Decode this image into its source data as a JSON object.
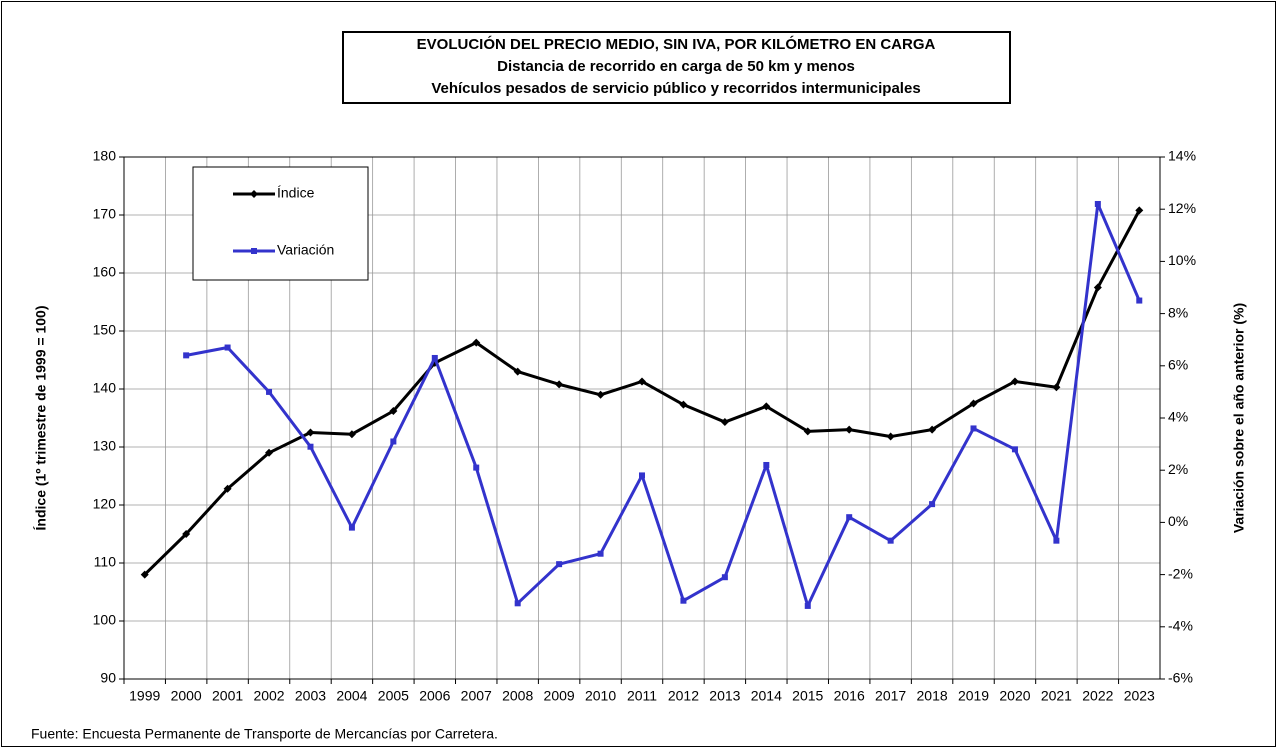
{
  "chart_data": {
    "type": "line",
    "title": [
      "EVOLUCIÓN  DEL PRECIO MEDIO, SIN IVA, POR KILÓMETRO  EN CARGA",
      "Distancia de recorrido en carga de 50 km y menos",
      "Vehículos pesados de servicio público  y recorridos intermunicipales"
    ],
    "y_label": "Índice (1º trimestre de 1999 = 100)",
    "y2_label": "Variación sobre el año anterior (%)",
    "source": "Fuente: Encuesta Permanente de Transporte de Mercancías por Carretera.",
    "categories": [
      "1999",
      "2000",
      "2001",
      "2002",
      "2003",
      "2004",
      "2005",
      "2006",
      "2007",
      "2008",
      "2009",
      "2010",
      "2011",
      "2012",
      "2013",
      "2014",
      "2015",
      "2016",
      "2017",
      "2018",
      "2019",
      "2020",
      "2021",
      "2022",
      "2023"
    ],
    "series": [
      {
        "name": "Índice",
        "color": "#000000",
        "marker": "diamond",
        "values": [
          108,
          115,
          122.8,
          129,
          132.5,
          132.2,
          136.2,
          144.5,
          148,
          143,
          140.8,
          139,
          141.3,
          137.3,
          134.3,
          137,
          132.7,
          133,
          131.8,
          133,
          137.5,
          141.3,
          140.3,
          157.5,
          170.8
        ]
      },
      {
        "name": "Variación",
        "color": "#3333cc",
        "marker": "square",
        "axis": "y2",
        "values": [
          null,
          6.4,
          6.7,
          5.0,
          2.9,
          -0.2,
          3.1,
          6.3,
          2.1,
          -3.1,
          -1.6,
          -1.2,
          1.8,
          -3.0,
          -2.1,
          2.2,
          -3.2,
          0.2,
          -0.7,
          0.7,
          3.6,
          2.8,
          -0.7,
          12.2,
          8.5
        ]
      }
    ],
    "ylim": [
      90,
      180
    ],
    "yticks": [
      90,
      100,
      110,
      120,
      130,
      140,
      150,
      160,
      170,
      180
    ],
    "y2lim": [
      -6,
      14
    ],
    "y2ticks": [
      {
        "value": -6,
        "label": "-6%"
      },
      {
        "value": -4,
        "label": "-4%"
      },
      {
        "value": -2,
        "label": "-2%"
      },
      {
        "value": 0,
        "label": "0%"
      },
      {
        "value": 2,
        "label": "2%"
      },
      {
        "value": 4,
        "label": "4%"
      },
      {
        "value": 6,
        "label": "6%"
      },
      {
        "value": 8,
        "label": "8%"
      },
      {
        "value": 10,
        "label": "10%"
      },
      {
        "value": 12,
        "label": "12%"
      },
      {
        "value": 14,
        "label": "14%"
      }
    ],
    "grid": true,
    "legend": "upper left"
  }
}
